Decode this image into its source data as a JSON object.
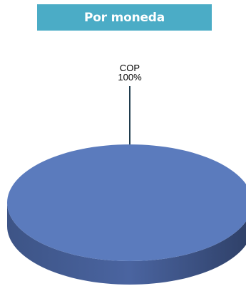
{
  "chart_data": {
    "type": "pie",
    "title": "Por moneda",
    "slices": [
      {
        "label": "COP",
        "value": 100,
        "percent_label": "100%",
        "color": "#5b7bbd"
      }
    ],
    "style": "3d",
    "title_bar_color": "#4bacc6",
    "leader_line_color": "#1f3b4d"
  }
}
